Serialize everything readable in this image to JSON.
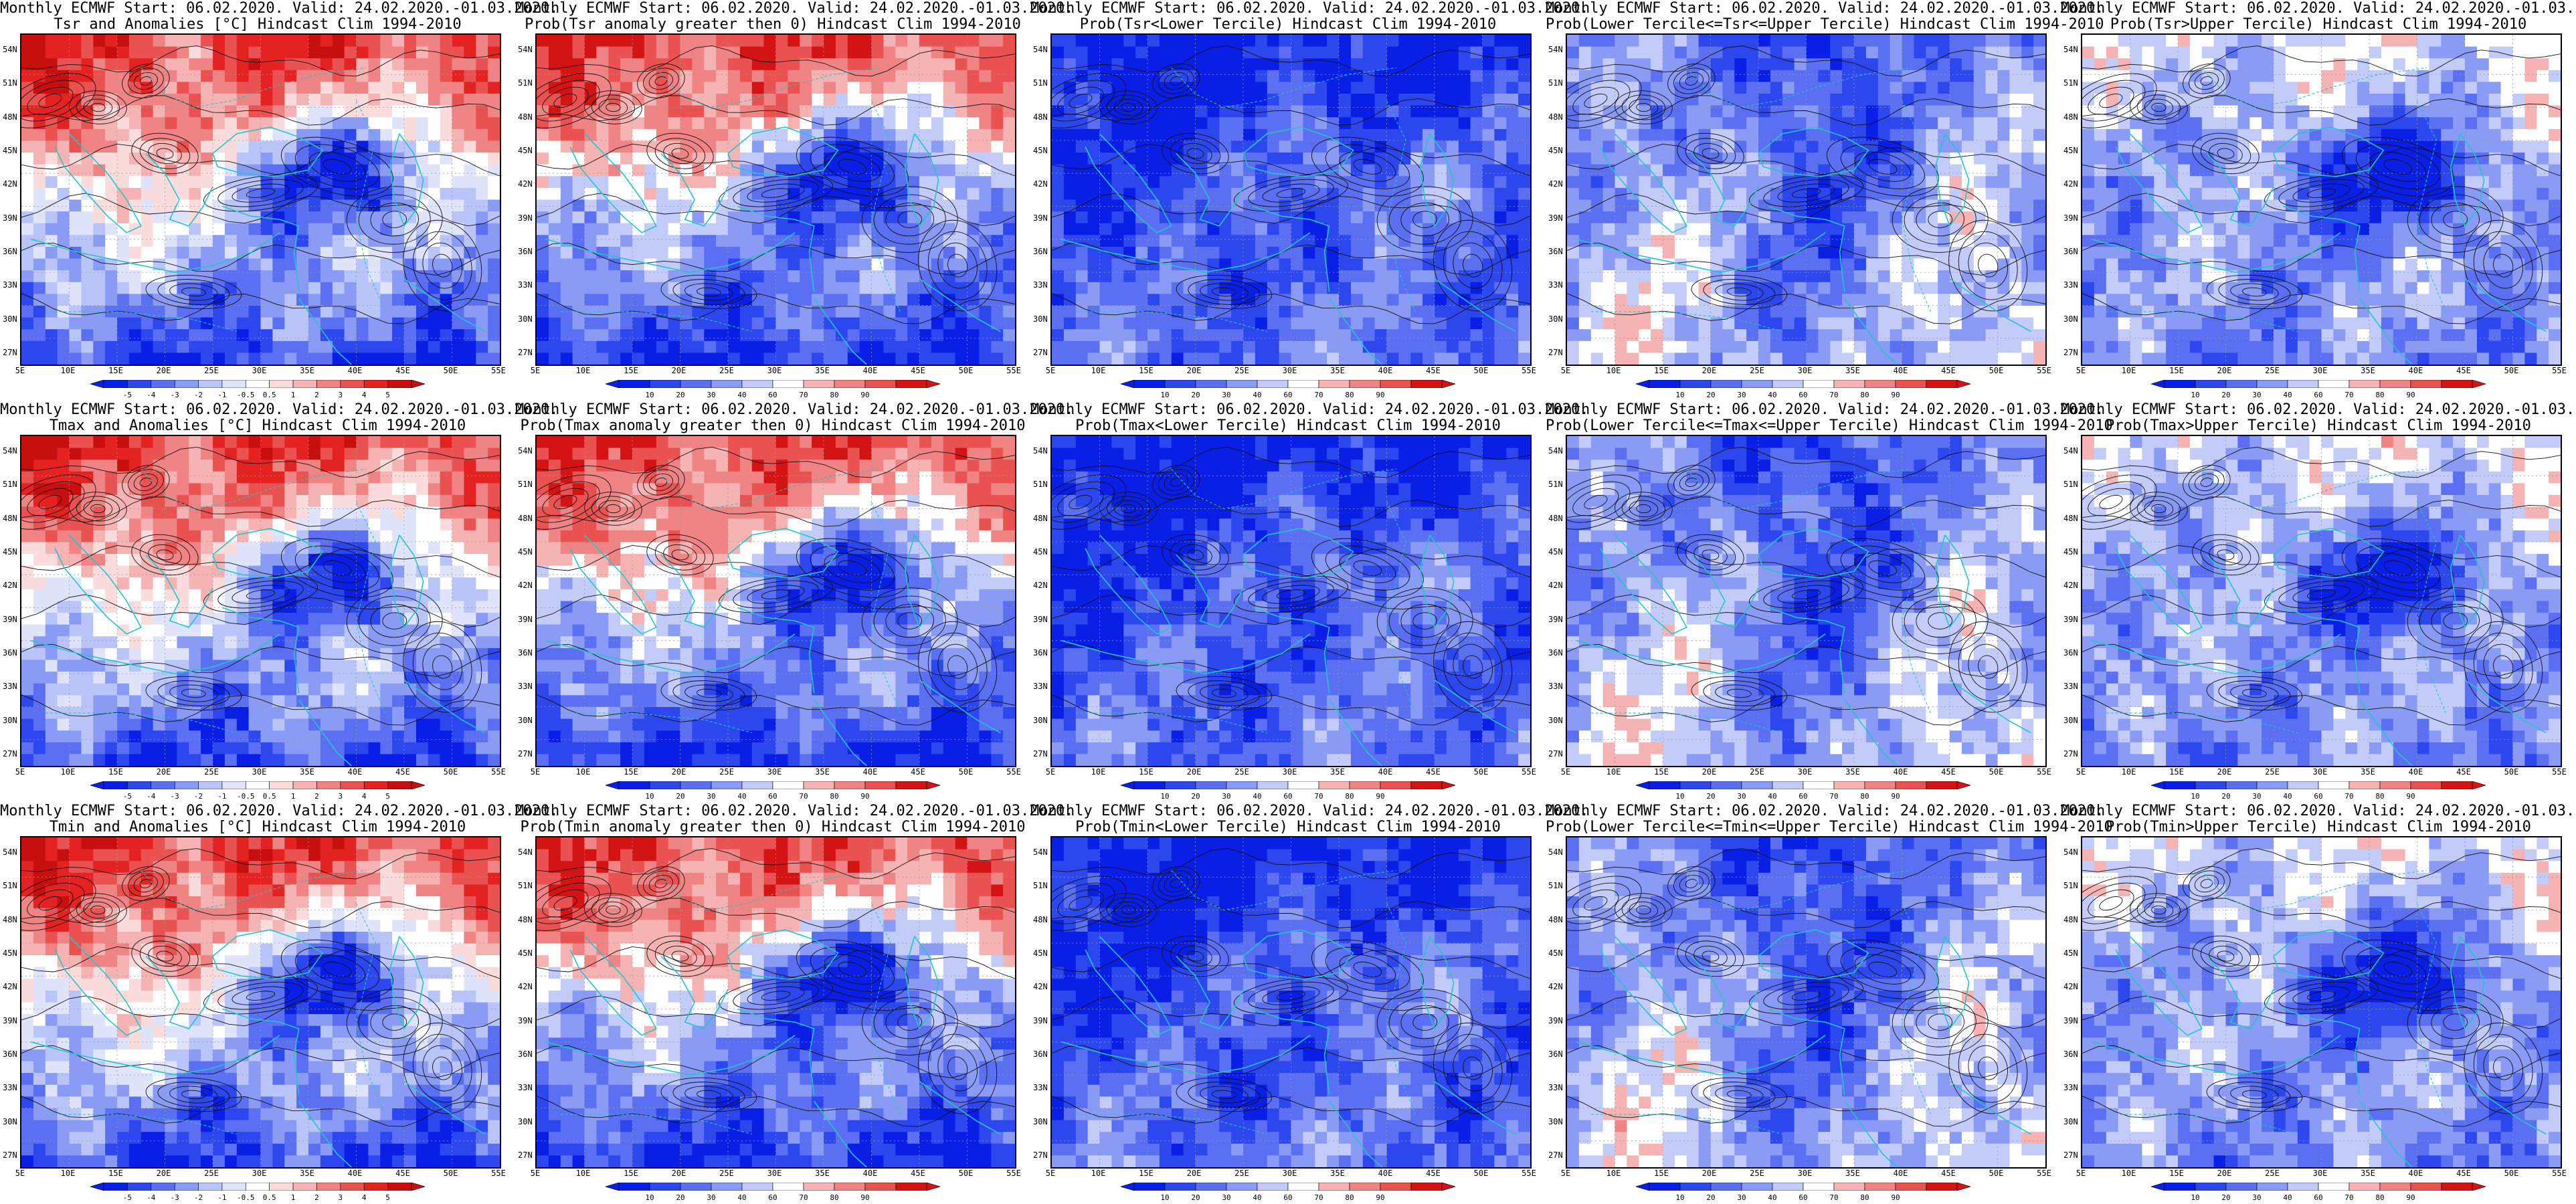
{
  "header_text": "Monthly ECMWF Start: 06.02.2020. Valid: 24.02.2020.-01.03.2020.",
  "lat_labels": [
    "54N",
    "51N",
    "48N",
    "45N",
    "42N",
    "39N",
    "36N",
    "33N",
    "30N",
    "27N"
  ],
  "lon_labels": [
    "5E",
    "10E",
    "15E",
    "20E",
    "25E",
    "30E",
    "35E",
    "40E",
    "45E",
    "50E",
    "55E"
  ],
  "anomaly_legend": [
    "-5",
    "-4",
    "-3",
    "-2",
    "-1",
    "-0.5",
    "0.5",
    "1",
    "2",
    "3",
    "4",
    "5"
  ],
  "prob_legend": [
    "10",
    "20",
    "30",
    "40",
    "60",
    "70",
    "80",
    "90"
  ],
  "colors": {
    "coast": "#22c5cc",
    "contour": "#111111",
    "anomaly_scale": [
      "#0a1fe6",
      "#2d47ee",
      "#5a6ff2",
      "#8a9bf5",
      "#b9c4f8",
      "#dfe4fb",
      "#ffffff",
      "#fbdcdc",
      "#f6b3b3",
      "#f08484",
      "#ea5252",
      "#e52222",
      "#c80f0f"
    ],
    "prob_scale": [
      "#0a1fe6",
      "#2d47ee",
      "#5a6ff2",
      "#8a9bf5",
      "#c3ccf9",
      "#ffffff",
      "#f6b3b3",
      "#f08484",
      "#ea5252",
      "#d41414"
    ]
  },
  "panels": [
    {
      "title": "Tsr and Anomalies [°C] Hindcast Clim 1994-2010",
      "legend": "anomaly",
      "pattern": "warm"
    },
    {
      "title": "Prob(Tsr anomaly greater then 0) Hindcast Clim 1994-2010",
      "legend": "prob",
      "pattern": "warm"
    },
    {
      "title": "Prob(Tsr<Lower Tercile) Hindcast Clim 1994-2010",
      "legend": "prob",
      "pattern": "lower"
    },
    {
      "title": "Prob(Lower Tercile<=Tsr<=Upper Tercile) Hindcast Clim 1994-2010",
      "legend": "prob",
      "pattern": "middle"
    },
    {
      "title": "Prob(Tsr>Upper Tercile) Hindcast Clim 1994-2010",
      "legend": "prob",
      "pattern": "upper"
    },
    {
      "title": "Tmax and Anomalies [°C] Hindcast Clim 1994-2010",
      "legend": "anomaly",
      "pattern": "warm"
    },
    {
      "title": "Prob(Tmax anomaly greater then 0) Hindcast Clim 1994-2010",
      "legend": "prob",
      "pattern": "warm"
    },
    {
      "title": "Prob(Tmax<Lower Tercile) Hindcast Clim 1994-2010",
      "legend": "prob",
      "pattern": "lower"
    },
    {
      "title": "Prob(Lower Tercile<=Tmax<=Upper Tercile) Hindcast Clim 1994-2010",
      "legend": "prob",
      "pattern": "middle"
    },
    {
      "title": "Prob(Tmax>Upper Tercile) Hindcast Clim 1994-2010",
      "legend": "prob",
      "pattern": "upper"
    },
    {
      "title": "Tmin and Anomalies [°C] Hindcast Clim 1994-2010",
      "legend": "anomaly",
      "pattern": "warm"
    },
    {
      "title": "Prob(Tmin anomaly greater then 0) Hindcast Clim 1994-2010",
      "legend": "prob",
      "pattern": "warm"
    },
    {
      "title": "Prob(Tmin<Lower Tercile) Hindcast Clim 1994-2010",
      "legend": "prob",
      "pattern": "lower"
    },
    {
      "title": "Prob(Lower Tercile<=Tmin<=Upper Tercile) Hindcast Clim 1994-2010",
      "legend": "prob",
      "pattern": "middle"
    },
    {
      "title": "Prob(Tmin>Upper Tercile) Hindcast Clim 1994-2010",
      "legend": "prob",
      "pattern": "upper"
    }
  ]
}
